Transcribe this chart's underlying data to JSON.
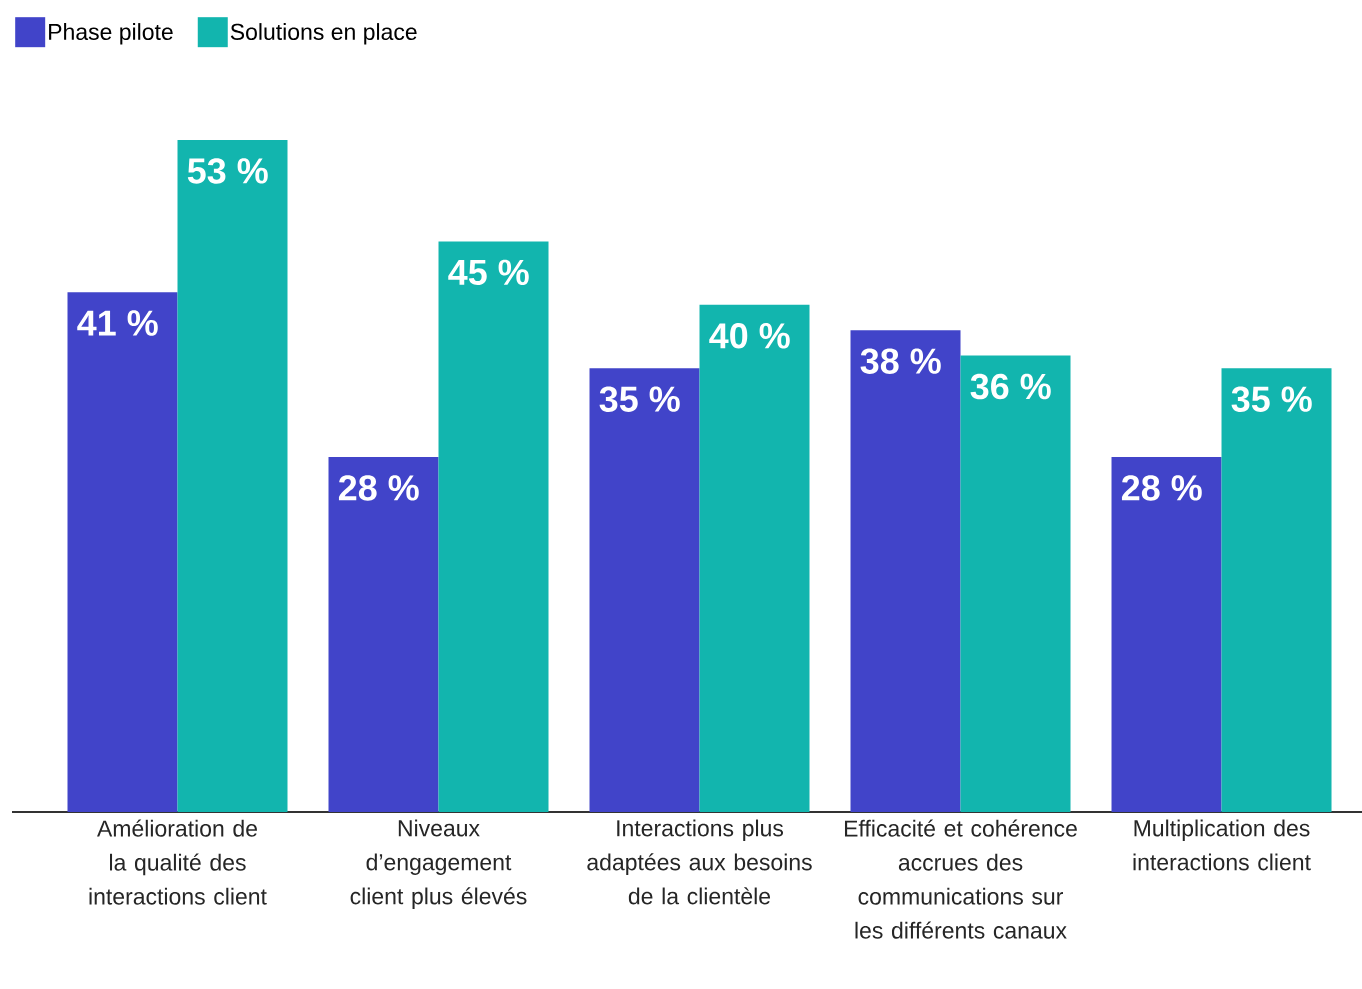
{
  "chart_data": {
    "type": "bar",
    "categories": [
      "Amélioration de la qualité des interactions client",
      "Niveaux d’engagement client plus élevés",
      "Interactions plus adaptées aux besoins de la clientèle",
      "Efficacité et cohérence accrues des communications sur les différents canaux",
      "Multiplication des interactions client"
    ],
    "series": [
      {
        "name": "Phase pilote",
        "color": "#4144c9",
        "values": [
          41,
          28,
          35,
          38,
          28
        ],
        "value_labels": [
          "41 %",
          "28 %",
          "35 %",
          "38 %",
          "28 %"
        ]
      },
      {
        "name": "Solutions en place",
        "color": "#12b5ae",
        "values": [
          53,
          45,
          40,
          36,
          35
        ],
        "value_labels": [
          "53 %",
          "45 %",
          "40 %",
          "36 %",
          "35 %"
        ]
      }
    ],
    "legend": "top left"
  }
}
